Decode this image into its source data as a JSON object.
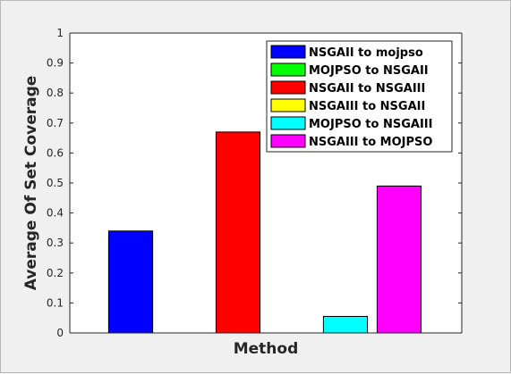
{
  "chart_data": {
    "type": "bar",
    "title": "",
    "xlabel": "Method",
    "ylabel": "Average Of Set Coverage",
    "ylim": [
      0,
      1
    ],
    "yticks": [
      "0",
      "0.1",
      "0.2",
      "0.3",
      "0.4",
      "0.5",
      "0.6",
      "0.7",
      "0.8",
      "0.9",
      "1"
    ],
    "legend_position": "top-right",
    "grid": false,
    "series": [
      {
        "name": "NSGAII to mojpso",
        "value": 0.34,
        "color": "#0000ff"
      },
      {
        "name": "MOJPSO to NSGAII",
        "value": 0.0,
        "color": "#00ff00"
      },
      {
        "name": "NSGAII to NSGAIII",
        "value": 0.67,
        "color": "#ff0000"
      },
      {
        "name": "NSGAIII to NSGAII",
        "value": 0.0,
        "color": "#ffff00"
      },
      {
        "name": "MOJPSO to NSGAIII",
        "value": 0.055,
        "color": "#00ffff"
      },
      {
        "name": "NSGAIII to MOJPSO",
        "value": 0.49,
        "color": "#ff00ff"
      }
    ]
  }
}
